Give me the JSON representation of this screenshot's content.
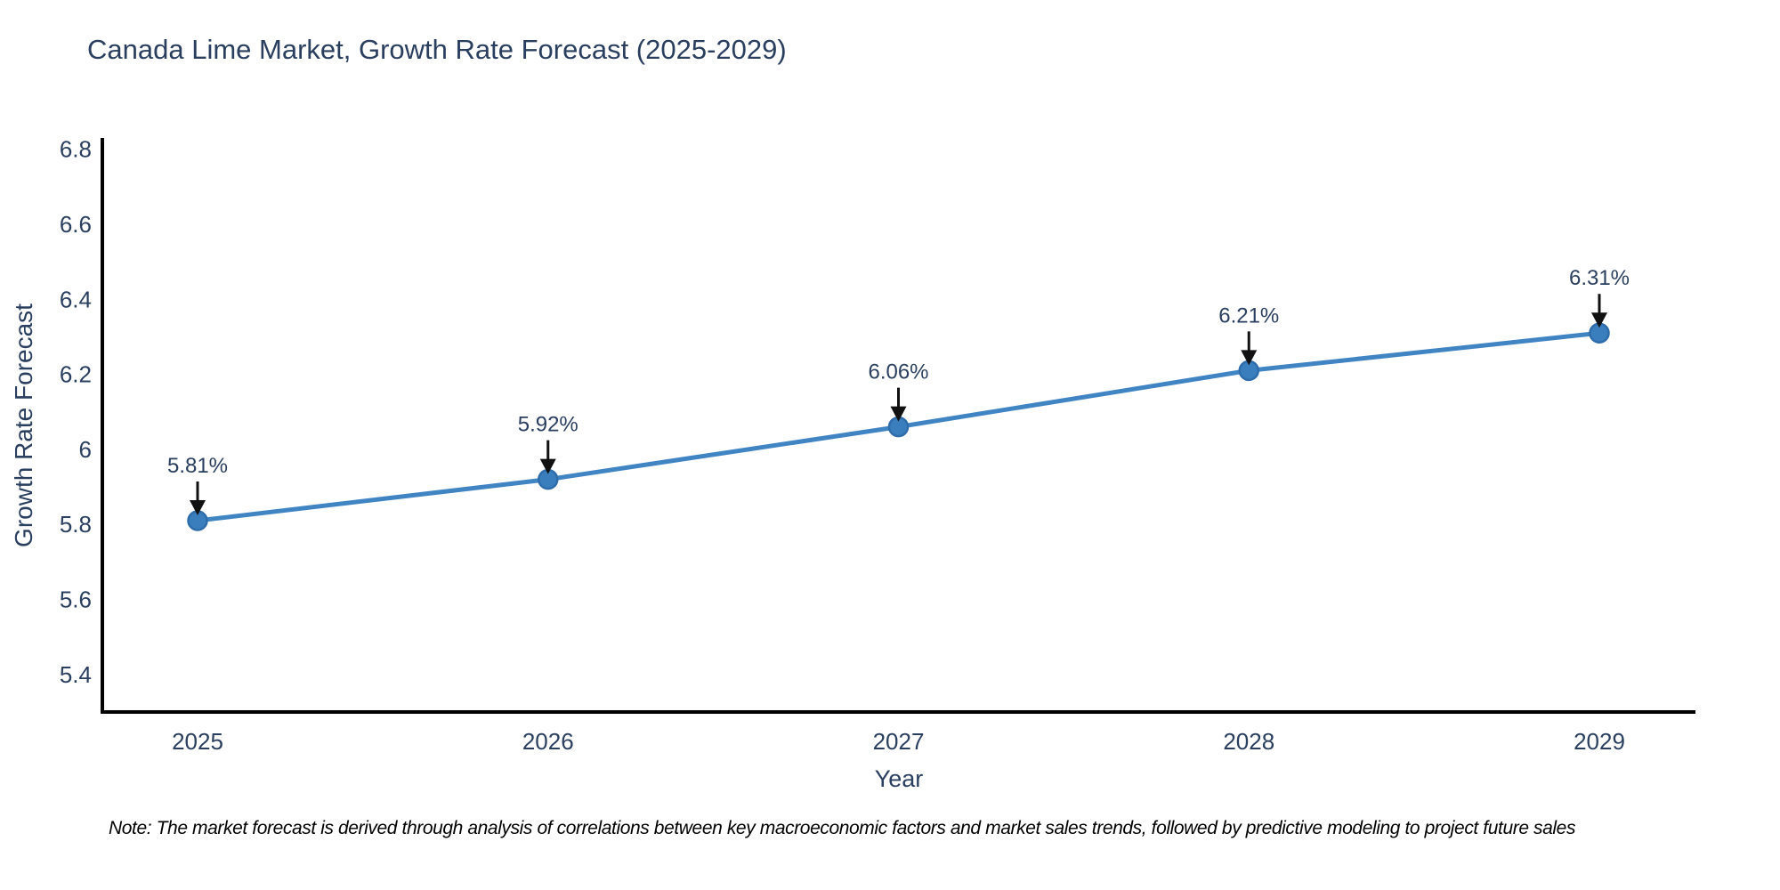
{
  "title": "Canada Lime Market, Growth Rate Forecast (2025-2029)",
  "note": "Note: The market forecast is derived through analysis of correlations between key macroeconomic factors and market sales trends, followed by predictive modeling to project future sales",
  "chart_data": {
    "type": "line",
    "title": "Canada Lime Market, Growth Rate Forecast (2025-2029)",
    "xlabel": "Year",
    "ylabel": "Growth Rate Forecast",
    "categories": [
      "2025",
      "2026",
      "2027",
      "2028",
      "2029"
    ],
    "values": [
      5.81,
      5.92,
      6.06,
      6.21,
      6.31
    ],
    "point_labels": [
      "5.81%",
      "5.92%",
      "6.06%",
      "6.21%",
      "6.31%"
    ],
    "yticks": [
      5.4,
      5.6,
      5.8,
      6,
      6.2,
      6.4,
      6.6,
      6.8
    ],
    "ylim": [
      5.3,
      6.83
    ],
    "grid": false,
    "legend": "none",
    "annotation_style": "down-arrow",
    "colors": {
      "line": "#4184c4",
      "marker": "#3a7ebd",
      "marker_edge": "#2f6cab",
      "axis": "#000000",
      "text": "#2a3f5f",
      "annotation_arrow": "#111111",
      "note_text": "#000000"
    }
  }
}
